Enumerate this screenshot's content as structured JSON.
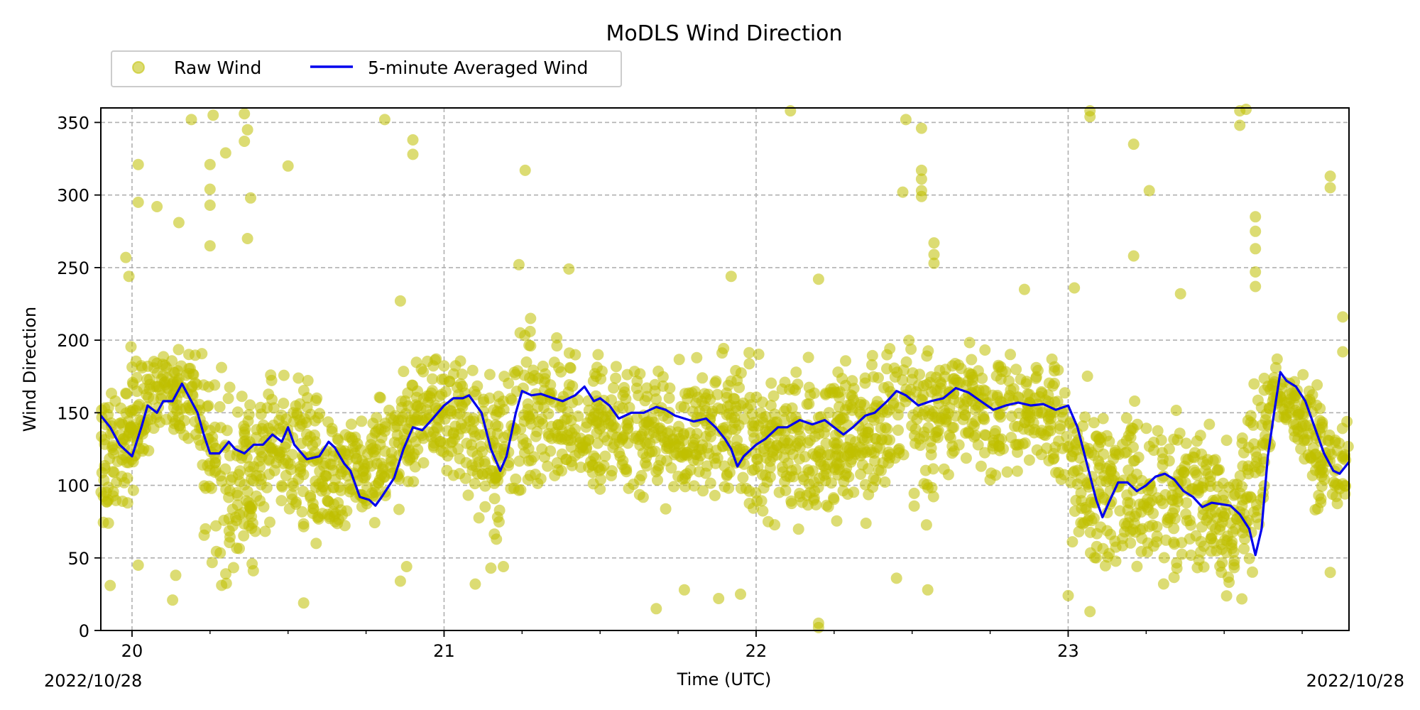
{
  "chart_data": {
    "type": "scatter",
    "title": "MoDLS Wind Direction",
    "xlabel": "Time (UTC)",
    "ylabel": "Wind Direction",
    "date_left": "2022/10/28",
    "date_right": "2022/10/28",
    "xlim": [
      19.9,
      23.9
    ],
    "ylim": [
      0,
      360
    ],
    "x_major_ticks": [
      20,
      21,
      22,
      23
    ],
    "x_major_labels": [
      "20",
      "21",
      "22",
      "23"
    ],
    "x_minor_ticks": [
      20.25,
      20.5,
      20.75,
      21.25,
      21.5,
      21.75,
      22.25,
      22.5,
      22.75,
      23.25,
      23.5,
      23.75
    ],
    "y_ticks": [
      0,
      50,
      100,
      150,
      200,
      250,
      300,
      350
    ],
    "y_tick_labels": [
      "0",
      "50",
      "100",
      "150",
      "200",
      "250",
      "300",
      "350"
    ],
    "grid": true,
    "legend_position": "top-left, above plot",
    "series": [
      {
        "name": "Raw Wind",
        "kind": "scatter",
        "color": "#bfbf00",
        "opacity": 0.55,
        "sample_points": [
          [
            19.93,
            31
          ],
          [
            19.98,
            257
          ],
          [
            19.99,
            244
          ],
          [
            20.02,
            321
          ],
          [
            20.02,
            295
          ],
          [
            20.08,
            292
          ],
          [
            20.15,
            281
          ],
          [
            20.19,
            352
          ],
          [
            20.25,
            321
          ],
          [
            20.25,
            304
          ],
          [
            20.25,
            293
          ],
          [
            20.26,
            355
          ],
          [
            20.25,
            265
          ],
          [
            20.3,
            329
          ],
          [
            20.36,
            356
          ],
          [
            20.36,
            337
          ],
          [
            20.37,
            345
          ],
          [
            20.37,
            270
          ],
          [
            20.38,
            298
          ],
          [
            20.5,
            320
          ],
          [
            20.55,
            19
          ],
          [
            20.81,
            352
          ],
          [
            20.9,
            338
          ],
          [
            20.9,
            328
          ],
          [
            20.86,
            227
          ],
          [
            21.26,
            317
          ],
          [
            21.24,
            252
          ],
          [
            21.4,
            249
          ],
          [
            21.92,
            244
          ],
          [
            22.11,
            358
          ],
          [
            22.2,
            242
          ],
          [
            22.47,
            302
          ],
          [
            22.48,
            352
          ],
          [
            22.53,
            346
          ],
          [
            22.53,
            317
          ],
          [
            22.53,
            311
          ],
          [
            22.53,
            303
          ],
          [
            22.53,
            299
          ],
          [
            22.57,
            267
          ],
          [
            22.57,
            259
          ],
          [
            22.57,
            253
          ],
          [
            22.86,
            235
          ],
          [
            23.02,
            236
          ],
          [
            23.07,
            358
          ],
          [
            23.07,
            354
          ],
          [
            23.21,
            335
          ],
          [
            23.26,
            303
          ],
          [
            23.21,
            258
          ],
          [
            23.36,
            232
          ],
          [
            23.55,
            358
          ],
          [
            23.55,
            348
          ],
          [
            23.57,
            359
          ],
          [
            23.6,
            285
          ],
          [
            23.6,
            275
          ],
          [
            23.6,
            263
          ],
          [
            23.6,
            247
          ],
          [
            23.6,
            237
          ],
          [
            23.84,
            313
          ],
          [
            23.84,
            305
          ],
          [
            23.88,
            216
          ],
          [
            23.88,
            192
          ],
          [
            23.84,
            40
          ],
          [
            22.2,
            5
          ],
          [
            22.2,
            2
          ],
          [
            21.68,
            15
          ],
          [
            21.77,
            28
          ],
          [
            21.95,
            25
          ],
          [
            21.88,
            22
          ],
          [
            22.55,
            28
          ],
          [
            22.45,
            36
          ],
          [
            23.0,
            24
          ],
          [
            23.07,
            13
          ],
          [
            20.13,
            21
          ],
          [
            20.14,
            38
          ],
          [
            20.02,
            45
          ],
          [
            21.1,
            32
          ],
          [
            21.15,
            43
          ],
          [
            21.19,
            44
          ],
          [
            20.86,
            34
          ],
          [
            20.88,
            44
          ]
        ],
        "bands": [
          [
            19.9,
            40,
            190
          ],
          [
            20.0,
            70,
            210
          ],
          [
            20.1,
            120,
            215
          ],
          [
            20.2,
            100,
            210
          ],
          [
            20.25,
            10,
            210
          ],
          [
            20.35,
            0,
            195
          ],
          [
            20.45,
            60,
            200
          ],
          [
            20.55,
            40,
            195
          ],
          [
            20.65,
            40,
            170
          ],
          [
            20.75,
            60,
            160
          ],
          [
            20.85,
            70,
            195
          ],
          [
            20.95,
            90,
            200
          ],
          [
            21.05,
            90,
            205
          ],
          [
            21.15,
            35,
            200
          ],
          [
            21.25,
            55,
            230
          ],
          [
            21.35,
            80,
            215
          ],
          [
            21.45,
            70,
            215
          ],
          [
            21.55,
            75,
            200
          ],
          [
            21.65,
            75,
            200
          ],
          [
            21.75,
            70,
            195
          ],
          [
            21.85,
            70,
            205
          ],
          [
            21.95,
            60,
            205
          ],
          [
            22.05,
            65,
            195
          ],
          [
            22.15,
            50,
            205
          ],
          [
            22.25,
            55,
            205
          ],
          [
            22.35,
            65,
            200
          ],
          [
            22.45,
            80,
            215
          ],
          [
            22.55,
            60,
            230
          ],
          [
            22.65,
            90,
            225
          ],
          [
            22.75,
            90,
            205
          ],
          [
            22.85,
            95,
            200
          ],
          [
            22.95,
            100,
            205
          ],
          [
            23.05,
            15,
            200
          ],
          [
            23.15,
            20,
            175
          ],
          [
            23.25,
            25,
            175
          ],
          [
            23.35,
            20,
            165
          ],
          [
            23.45,
            25,
            160
          ],
          [
            23.52,
            0,
            140
          ],
          [
            23.6,
            0,
            220
          ],
          [
            23.66,
            130,
            200
          ],
          [
            23.72,
            120,
            190
          ],
          [
            23.8,
            60,
            180
          ],
          [
            23.9,
            70,
            160
          ]
        ]
      },
      {
        "name": "5-minute Averaged Wind",
        "kind": "line",
        "color": "#0000ee",
        "points": [
          [
            19.9,
            148
          ],
          [
            19.93,
            140
          ],
          [
            19.96,
            128
          ],
          [
            19.99,
            122
          ],
          [
            20.0,
            120
          ],
          [
            20.03,
            140
          ],
          [
            20.05,
            155
          ],
          [
            20.08,
            150
          ],
          [
            20.1,
            158
          ],
          [
            20.13,
            158
          ],
          [
            20.16,
            170
          ],
          [
            20.18,
            162
          ],
          [
            20.21,
            150
          ],
          [
            20.23,
            135
          ],
          [
            20.25,
            122
          ],
          [
            20.28,
            122
          ],
          [
            20.31,
            130
          ],
          [
            20.33,
            125
          ],
          [
            20.36,
            122
          ],
          [
            20.39,
            128
          ],
          [
            20.42,
            128
          ],
          [
            20.45,
            135
          ],
          [
            20.48,
            130
          ],
          [
            20.5,
            140
          ],
          [
            20.52,
            128
          ],
          [
            20.56,
            118
          ],
          [
            20.6,
            120
          ],
          [
            20.63,
            130
          ],
          [
            20.65,
            126
          ],
          [
            20.68,
            115
          ],
          [
            20.7,
            110
          ],
          [
            20.73,
            92
          ],
          [
            20.76,
            90
          ],
          [
            20.78,
            86
          ],
          [
            20.8,
            92
          ],
          [
            20.84,
            105
          ],
          [
            20.87,
            125
          ],
          [
            20.9,
            140
          ],
          [
            20.93,
            138
          ],
          [
            20.96,
            145
          ],
          [
            21.0,
            155
          ],
          [
            21.03,
            160
          ],
          [
            21.06,
            160
          ],
          [
            21.08,
            162
          ],
          [
            21.12,
            150
          ],
          [
            21.15,
            125
          ],
          [
            21.18,
            110
          ],
          [
            21.2,
            120
          ],
          [
            21.23,
            150
          ],
          [
            21.25,
            165
          ],
          [
            21.28,
            162
          ],
          [
            21.31,
            163
          ],
          [
            21.35,
            160
          ],
          [
            21.38,
            158
          ],
          [
            21.42,
            162
          ],
          [
            21.45,
            168
          ],
          [
            21.48,
            158
          ],
          [
            21.5,
            160
          ],
          [
            21.53,
            155
          ],
          [
            21.56,
            146
          ],
          [
            21.6,
            150
          ],
          [
            21.64,
            150
          ],
          [
            21.68,
            154
          ],
          [
            21.71,
            152
          ],
          [
            21.74,
            148
          ],
          [
            21.77,
            146
          ],
          [
            21.8,
            144
          ],
          [
            21.84,
            146
          ],
          [
            21.87,
            140
          ],
          [
            21.9,
            132
          ],
          [
            21.92,
            125
          ],
          [
            21.94,
            113
          ],
          [
            21.96,
            120
          ],
          [
            22.0,
            128
          ],
          [
            22.03,
            132
          ],
          [
            22.07,
            140
          ],
          [
            22.1,
            140
          ],
          [
            22.14,
            145
          ],
          [
            22.18,
            142
          ],
          [
            22.22,
            145
          ],
          [
            22.25,
            140
          ],
          [
            22.28,
            135
          ],
          [
            22.31,
            140
          ],
          [
            22.35,
            148
          ],
          [
            22.38,
            150
          ],
          [
            22.42,
            158
          ],
          [
            22.45,
            165
          ],
          [
            22.48,
            162
          ],
          [
            22.52,
            155
          ],
          [
            22.56,
            158
          ],
          [
            22.6,
            160
          ],
          [
            22.64,
            167
          ],
          [
            22.68,
            164
          ],
          [
            22.72,
            158
          ],
          [
            22.76,
            152
          ],
          [
            22.8,
            155
          ],
          [
            22.84,
            157
          ],
          [
            22.88,
            155
          ],
          [
            22.92,
            156
          ],
          [
            22.96,
            152
          ],
          [
            23.0,
            155
          ],
          [
            23.03,
            140
          ],
          [
            23.06,
            115
          ],
          [
            23.09,
            90
          ],
          [
            23.11,
            78
          ],
          [
            23.13,
            88
          ],
          [
            23.16,
            102
          ],
          [
            23.19,
            102
          ],
          [
            23.22,
            96
          ],
          [
            23.25,
            100
          ],
          [
            23.28,
            106
          ],
          [
            23.31,
            108
          ],
          [
            23.34,
            104
          ],
          [
            23.37,
            96
          ],
          [
            23.4,
            92
          ],
          [
            23.43,
            85
          ],
          [
            23.46,
            88
          ],
          [
            23.49,
            87
          ],
          [
            23.52,
            86
          ],
          [
            23.55,
            80
          ],
          [
            23.58,
            70
          ],
          [
            23.6,
            52
          ],
          [
            23.62,
            70
          ],
          [
            23.64,
            120
          ],
          [
            23.66,
            150
          ],
          [
            23.68,
            178
          ],
          [
            23.7,
            172
          ],
          [
            23.73,
            168
          ],
          [
            23.76,
            158
          ],
          [
            23.79,
            140
          ],
          [
            23.82,
            122
          ],
          [
            23.85,
            110
          ],
          [
            23.87,
            108
          ],
          [
            23.9,
            116
          ]
        ]
      }
    ]
  }
}
